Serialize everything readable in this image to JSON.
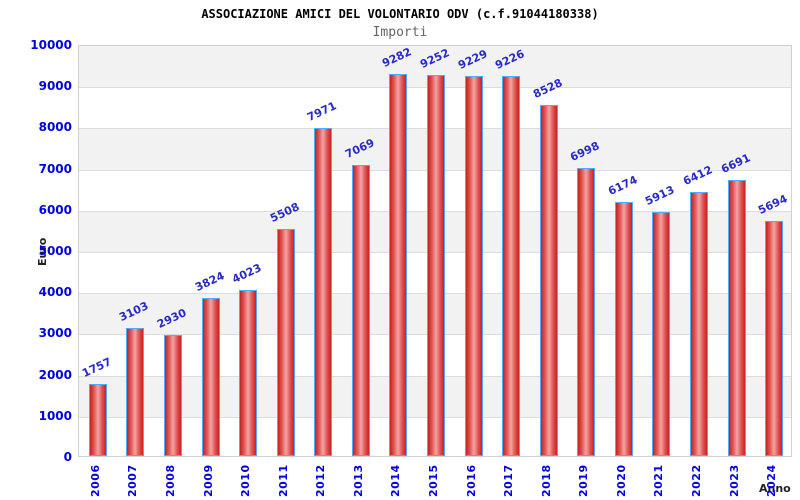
{
  "header": {
    "title": "ASSOCIAZIONE AMICI DEL VOLONTARIO ODV (c.f.91044180338)",
    "subtitle": "Importi"
  },
  "chart_data": {
    "type": "bar",
    "title": "ASSOCIAZIONE AMICI DEL VOLONTARIO ODV (c.f.91044180338)",
    "subtitle": "Importi",
    "xlabel": "Anno",
    "ylabel": "Euro",
    "categories": [
      "2006",
      "2007",
      "2008",
      "2009",
      "2010",
      "2011",
      "2012",
      "2013",
      "2014",
      "2015",
      "2016",
      "2017",
      "2018",
      "2019",
      "2020",
      "2021",
      "2022",
      "2023",
      "2024"
    ],
    "values": [
      1757,
      3103,
      2930,
      3824,
      4023,
      5508,
      7971,
      7069,
      9282,
      9252,
      9229,
      9226,
      8528,
      6998,
      6174,
      5913,
      6412,
      6691,
      5694
    ],
    "ylim": [
      0,
      10000
    ],
    "ytick_step": 1000,
    "grid": true,
    "legend_position": "none",
    "band_pattern": "alternating-horizontal",
    "colors": {
      "bar_edge": "#55aaff",
      "bar_dark": "#c42222",
      "bar_light": "#f2a5a5",
      "tick_text": "#0000dd",
      "value_text": "#2929c8",
      "band": "#f2f2f2",
      "gridline": "#dcdcdc",
      "plot_border": "#d0d0d0",
      "title_text": "#000000",
      "subtitle_text": "#666666",
      "axis_title_text": "#222222"
    }
  }
}
